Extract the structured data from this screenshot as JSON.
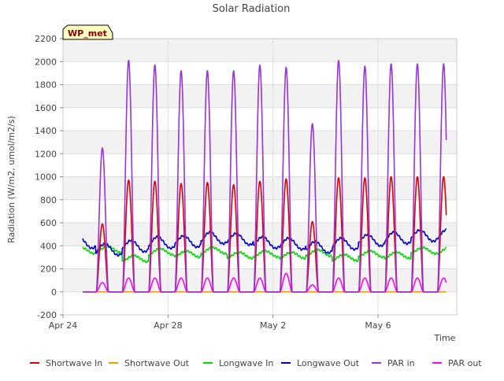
{
  "chart_data": {
    "type": "line",
    "title": "Solar Radiation",
    "xlabel": "Time",
    "ylabel": "Radiation (W/m2, umol/m2/s)",
    "badge": "WP_met",
    "ylim": [
      -200,
      2200
    ],
    "yticks": [
      -200,
      0,
      200,
      400,
      600,
      800,
      1000,
      1200,
      1400,
      1600,
      1800,
      2000,
      2200
    ],
    "xlim_days": [
      0,
      15
    ],
    "xticks": [
      {
        "day": 0,
        "label": "Apr 24"
      },
      {
        "day": 4,
        "label": "Apr 28"
      },
      {
        "day": 8,
        "label": "May 2"
      },
      {
        "day": 12,
        "label": "May 6"
      }
    ],
    "grid": true,
    "legend_position": "bottom",
    "series": [
      {
        "name": "Shortwave In",
        "color": "#dd0000",
        "daily_peaks": [
          820,
          590,
          970,
          960,
          940,
          950,
          930,
          960,
          980,
          610,
          990,
          990,
          1000,
          1000
        ]
      },
      {
        "name": "Shortwave Out",
        "color": "#ff9900",
        "daily_peaks": [
          0,
          0,
          0,
          0,
          0,
          0,
          0,
          0,
          0,
          0,
          0,
          0,
          0,
          0
        ]
      },
      {
        "name": "Longwave In",
        "color": "#00dd00",
        "daily_values": [
          370,
          380,
          300,
          360,
          340,
          370,
          330,
          340,
          330,
          350,
          310,
          340,
          330,
          370
        ]
      },
      {
        "name": "Longwave Out",
        "color": "#0000cc",
        "daily_values": [
          450,
          390,
          420,
          450,
          460,
          490,
          480,
          450,
          440,
          410,
          440,
          470,
          490,
          510
        ]
      },
      {
        "name": "PAR in",
        "color": "#9933dd",
        "daily_peaks": [
          1690,
          1250,
          2010,
          1970,
          1920,
          1920,
          1920,
          1970,
          1950,
          1460,
          2010,
          1960,
          1980,
          1980
        ]
      },
      {
        "name": "PAR out",
        "color": "#ff00ff",
        "daily_peaks": [
          110,
          80,
          120,
          120,
          120,
          120,
          120,
          120,
          160,
          60,
          120,
          120,
          120,
          120
        ]
      }
    ]
  }
}
